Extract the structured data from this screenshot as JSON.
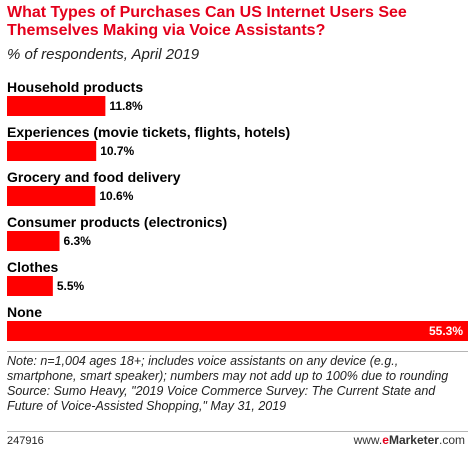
{
  "title": "What Types of Purchases Can US Internet Users See Themselves Making via Voice Assistants?",
  "subtitle": "% of respondents, April 2019",
  "chart_data": {
    "type": "bar",
    "orientation": "horizontal",
    "categories": [
      "Household products",
      "Experiences (movie tickets, flights, hotels)",
      "Grocery and food delivery",
      "Consumer products (electronics)",
      "Clothes",
      "None"
    ],
    "values": [
      11.8,
      10.7,
      10.6,
      6.3,
      5.5,
      55.3
    ],
    "value_labels": [
      "11.8%",
      "10.7%",
      "10.6%",
      "6.3%",
      "5.5%",
      "55.3%"
    ],
    "bar_color": "#ff0000",
    "xlim": [
      0,
      55.3
    ],
    "grid": false,
    "legend": "none"
  },
  "note": "Note: n=1,004 ages 18+; includes voice assistants on any device (e.g., smartphone, smart speaker); numbers may not add up to 100% due to rounding",
  "source": "Source: Sumo Heavy, \"2019 Voice Commerce Survey: The Current State and Future of Voice-Assisted Shopping,\" May 31, 2019",
  "chart_id": "247916",
  "brand": {
    "prefix": "www.",
    "e": "e",
    "name": "Marketer",
    "suffix": ".com"
  }
}
